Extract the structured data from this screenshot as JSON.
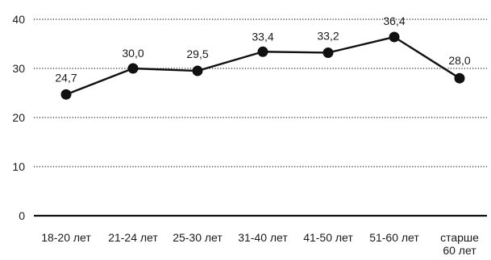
{
  "chart_data": {
    "type": "line",
    "title": "",
    "xlabel": "",
    "ylabel": "",
    "ylim": [
      0,
      40
    ],
    "yticks": [
      0,
      10,
      20,
      30,
      40
    ],
    "grid": true,
    "categories": [
      "18-20 лет",
      "21-24 лет",
      "25-30 лет",
      "31-40 лет",
      "41-50 лет",
      "51-60 лет",
      "старше\n60 лет"
    ],
    "series": [
      {
        "values": [
          24.7,
          30.0,
          29.5,
          33.4,
          33.2,
          36.4,
          28.0
        ],
        "labels": [
          "24,7",
          "30,0",
          "29,5",
          "33,4",
          "33,2",
          "36,4",
          "28,0"
        ]
      }
    ],
    "colors": {
      "line": "#111111",
      "marker": "#111111",
      "grid": "#222222",
      "text": "#1a1a1a"
    }
  }
}
